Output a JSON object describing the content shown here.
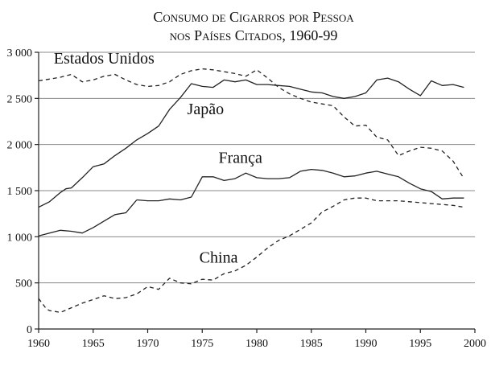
{
  "chart_data": {
    "type": "line",
    "title_line1": "Consumo de Cigarros por Pessoa",
    "title_line2": "nos Países Citados, 1960-99",
    "xlabel": "",
    "ylabel": "",
    "xlim": [
      1960,
      2000
    ],
    "ylim": [
      0,
      3000
    ],
    "xticks": [
      1960,
      1965,
      1970,
      1975,
      1980,
      1985,
      1990,
      1995,
      2000
    ],
    "yticks": [
      0,
      500,
      1000,
      1500,
      2000,
      2500,
      3000
    ],
    "ytick_labels": [
      "0",
      "500",
      "1 000",
      "1 500",
      "2 000",
      "2 500",
      "3 000"
    ],
    "grid": "horizontal",
    "series": [
      {
        "name": "Estados Unidos",
        "style": "dashed",
        "label_pos": [
          1966,
          2880
        ],
        "x": [
          1960,
          1961,
          1962,
          1963,
          1964,
          1965,
          1966,
          1967,
          1968,
          1969,
          1970,
          1971,
          1972,
          1973,
          1974,
          1975,
          1976,
          1977,
          1978,
          1979,
          1980,
          1981,
          1982,
          1983,
          1984,
          1985,
          1986,
          1987,
          1988,
          1989,
          1990,
          1991,
          1992,
          1993,
          1994,
          1995,
          1996,
          1997,
          1998,
          1999
        ],
        "values": [
          2690,
          2710,
          2730,
          2760,
          2680,
          2700,
          2740,
          2760,
          2700,
          2650,
          2630,
          2640,
          2680,
          2760,
          2800,
          2820,
          2810,
          2790,
          2770,
          2740,
          2810,
          2720,
          2620,
          2550,
          2500,
          2460,
          2440,
          2420,
          2300,
          2200,
          2210,
          2080,
          2050,
          1880,
          1930,
          1970,
          1960,
          1930,
          1820,
          1630
        ]
      },
      {
        "name": "Japão",
        "style": "solid",
        "label_pos": [
          1975.3,
          2330
        ],
        "x": [
          1960,
          1961,
          1962,
          1962.5,
          1963,
          1964,
          1965,
          1966,
          1967,
          1968,
          1969,
          1970,
          1971,
          1972,
          1973,
          1974,
          1975,
          1976,
          1977,
          1978,
          1979,
          1980,
          1981,
          1982,
          1983,
          1984,
          1985,
          1986,
          1987,
          1988,
          1989,
          1990,
          1991,
          1992,
          1993,
          1994,
          1995,
          1996,
          1997,
          1998,
          1999
        ],
        "values": [
          1320,
          1380,
          1480,
          1520,
          1530,
          1640,
          1760,
          1790,
          1880,
          1960,
          2050,
          2120,
          2200,
          2380,
          2510,
          2660,
          2630,
          2620,
          2700,
          2680,
          2700,
          2650,
          2650,
          2640,
          2630,
          2600,
          2570,
          2560,
          2520,
          2500,
          2520,
          2560,
          2700,
          2720,
          2680,
          2600,
          2530,
          2690,
          2640,
          2650,
          2620
        ]
      },
      {
        "name": "França",
        "style": "solid",
        "label_pos": [
          1978.5,
          1800
        ],
        "x": [
          1969,
          1970,
          1971,
          1972,
          1973,
          1974,
          1975,
          1976,
          1977,
          1978,
          1979,
          1980,
          1981,
          1982,
          1983,
          1984,
          1985,
          1986,
          1987,
          1988,
          1989,
          1990,
          1991,
          1992,
          1993,
          1994,
          1995,
          1996,
          1997,
          1998,
          1999
        ],
        "values": [
          1400,
          1390,
          1390,
          1410,
          1400,
          1430,
          1650,
          1650,
          1610,
          1630,
          1690,
          1640,
          1630,
          1630,
          1640,
          1710,
          1730,
          1720,
          1690,
          1650,
          1660,
          1690,
          1710,
          1680,
          1650,
          1580,
          1520,
          1490,
          1410,
          1420,
          1420
        ]
      },
      {
        "name": "",
        "style": "solid",
        "label_pos": null,
        "x": [
          1960,
          1961,
          1962,
          1963,
          1964,
          1965,
          1966,
          1967,
          1968,
          1969
        ],
        "values": [
          1010,
          1040,
          1070,
          1060,
          1040,
          1100,
          1170,
          1240,
          1260,
          1400
        ]
      },
      {
        "name": "China",
        "style": "dashed",
        "label_pos": [
          1976.5,
          720
        ],
        "x": [
          1960,
          1960.7,
          1961,
          1962,
          1963,
          1964,
          1965,
          1966,
          1967,
          1968,
          1969,
          1970,
          1971,
          1972,
          1973,
          1974,
          1975,
          1976,
          1977,
          1978,
          1979,
          1980,
          1981,
          1982,
          1983,
          1984,
          1985,
          1986,
          1987,
          1988,
          1989,
          1990,
          1991,
          1992,
          1993,
          1994,
          1995,
          1996,
          1997,
          1998,
          1999
        ],
        "values": [
          330,
          220,
          200,
          180,
          230,
          280,
          320,
          360,
          330,
          340,
          380,
          460,
          430,
          550,
          500,
          490,
          540,
          530,
          600,
          630,
          690,
          780,
          880,
          960,
          1010,
          1080,
          1150,
          1270,
          1330,
          1400,
          1420,
          1420,
          1390,
          1390,
          1390,
          1380,
          1370,
          1360,
          1350,
          1340,
          1320
        ]
      }
    ]
  }
}
